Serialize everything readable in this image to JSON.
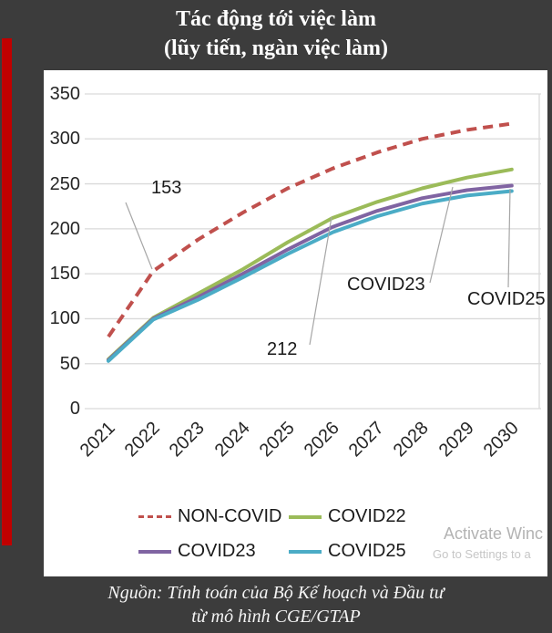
{
  "header": {
    "title_line1": "Tác động tới việc làm",
    "title_line2": "(lũy tiến, ngàn việc làm)"
  },
  "footer": {
    "source_line1": "Nguồn: Tính toán của Bộ Kế hoạch và Đầu tư",
    "source_line2": "từ mô hình CGE/GTAP"
  },
  "watermark": {
    "line1": "Activate Winc",
    "line2": "Go to Settings to a"
  },
  "colors": {
    "background": "#3C3C3C",
    "accent_bar": "#C00000",
    "panel": "#FFFFFF",
    "gridline": "#D9D9D9",
    "leader_line": "#A6A6A6",
    "non_covid": "#C0504D",
    "covid22": "#9BBB59",
    "covid23": "#8064A2",
    "covid25": "#4BACC6"
  },
  "chart_data": {
    "type": "line",
    "title": "Tác động tới việc làm (lũy tiến, ngàn việc làm)",
    "xlabel": "",
    "ylabel": "",
    "categories": [
      "2021",
      "2022",
      "2023",
      "2024",
      "2025",
      "2026",
      "2027",
      "2028",
      "2029",
      "2030"
    ],
    "series": [
      {
        "name": "NON-COVID",
        "color": "#C0504D",
        "style": "dashed",
        "values": [
          80,
          153,
          188,
          218,
          245,
          267,
          285,
          300,
          310,
          317
        ]
      },
      {
        "name": "COVID22",
        "color": "#9BBB59",
        "style": "solid",
        "values": [
          55,
          101,
          128,
          155,
          185,
          212,
          230,
          245,
          257,
          266
        ]
      },
      {
        "name": "COVID23",
        "color": "#8064A2",
        "style": "solid",
        "values": [
          54,
          100,
          124,
          150,
          177,
          202,
          220,
          234,
          243,
          248
        ]
      },
      {
        "name": "COVID25",
        "color": "#4BACC6",
        "style": "solid",
        "values": [
          53,
          99,
          121,
          146,
          172,
          196,
          214,
          228,
          237,
          242
        ]
      }
    ],
    "ylim": [
      0,
      350
    ],
    "ytick_step": 50,
    "yticks": [
      0,
      50,
      100,
      150,
      200,
      250,
      300,
      350
    ],
    "grid": true,
    "legend_position": "bottom",
    "annotations": [
      {
        "text": "153",
        "target_series": "NON-COVID",
        "target_year": "2022"
      },
      {
        "text": "212",
        "target_series": "COVID22",
        "target_year": "2026"
      },
      {
        "text": "COVID23",
        "target_series": "COVID23",
        "target_year": "2029"
      },
      {
        "text": "COVID25",
        "target_series": "COVID25",
        "target_year": "2030"
      }
    ]
  }
}
